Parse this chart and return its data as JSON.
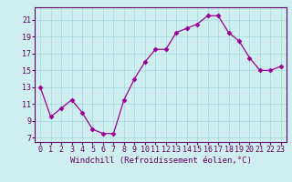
{
  "x": [
    0,
    1,
    2,
    3,
    4,
    5,
    6,
    7,
    8,
    9,
    10,
    11,
    12,
    13,
    14,
    15,
    16,
    17,
    18,
    19,
    20,
    21,
    22,
    23
  ],
  "y": [
    13,
    9.5,
    10.5,
    11.5,
    10,
    8,
    7.5,
    7.5,
    11.5,
    14,
    16,
    17.5,
    17.5,
    19.5,
    20,
    20.5,
    21.5,
    21.5,
    19.5,
    18.5,
    16.5,
    15,
    15,
    15.5
  ],
  "line_color": "#990099",
  "marker": "D",
  "marker_size": 2.5,
  "bg_color": "#ceeef0",
  "grid_color": "#aadddd",
  "xlabel": "Windchill (Refroidissement éolien,°C)",
  "xlim": [
    -0.5,
    23.5
  ],
  "ylim": [
    6.5,
    22.5
  ],
  "yticks": [
    7,
    9,
    11,
    13,
    15,
    17,
    19,
    21
  ],
  "xticks": [
    0,
    1,
    2,
    3,
    4,
    5,
    6,
    7,
    8,
    9,
    10,
    11,
    12,
    13,
    14,
    15,
    16,
    17,
    18,
    19,
    20,
    21,
    22,
    23
  ],
  "tick_color": "#660066",
  "label_fontsize": 6.5,
  "tick_fontsize": 6.0,
  "spine_color": "#660066"
}
